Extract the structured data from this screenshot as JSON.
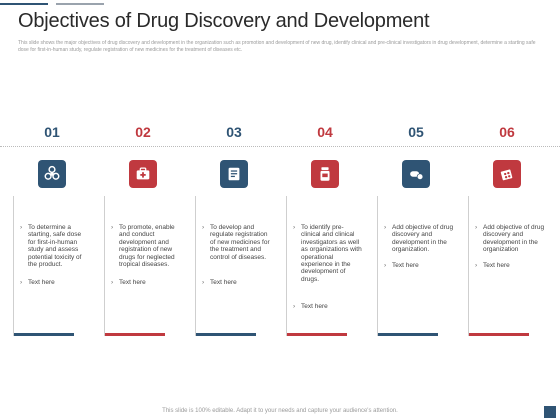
{
  "title": "Objectives of Drug Discovery and Development",
  "subtitle": "This slide shows the major objectives of drug discovery and development in the organization such as promotion and development of new drug, identify clinical and pre-clinical investigators in drug development, determine a starting safe dose for first-in-human study, regulate registration of new medicines for the treatment of diseases etc.",
  "footer": "This slide is 100% editable. Adapt it to your needs and capture your audience's attention.",
  "colors": {
    "blue": "#2f5474",
    "red": "#c0393f"
  },
  "steps": [
    {
      "number": "01",
      "icon": "biohazard-icon",
      "bullets": [
        "To determine a starting, safe dose for first-in-human study and assess potential toxicity of the product.",
        "Text here"
      ]
    },
    {
      "number": "02",
      "icon": "medical-kit-icon",
      "bullets": [
        "To promote, enable and conduct development and registration of new drugs for neglected tropical diseases.",
        "Text here"
      ]
    },
    {
      "number": "03",
      "icon": "medical-report-icon",
      "bullets": [
        "To develop and regulate registration of new medicines for the treatment and control of diseases.",
        "Text here"
      ]
    },
    {
      "number": "04",
      "icon": "medicine-bottle-icon",
      "bullets": [
        "To identify pre-clinical and clinical investigators as well as organizations with operational experience in the development of drugs.",
        "Text here"
      ]
    },
    {
      "number": "05",
      "icon": "pill-capsule-icon",
      "bullets": [
        "Add objective of drug discovery and development in the organization.",
        "Text here"
      ]
    },
    {
      "number": "06",
      "icon": "pills-package-icon",
      "bullets": [
        "Add objective of drug discovery and development in the organization",
        "Text here"
      ]
    }
  ]
}
